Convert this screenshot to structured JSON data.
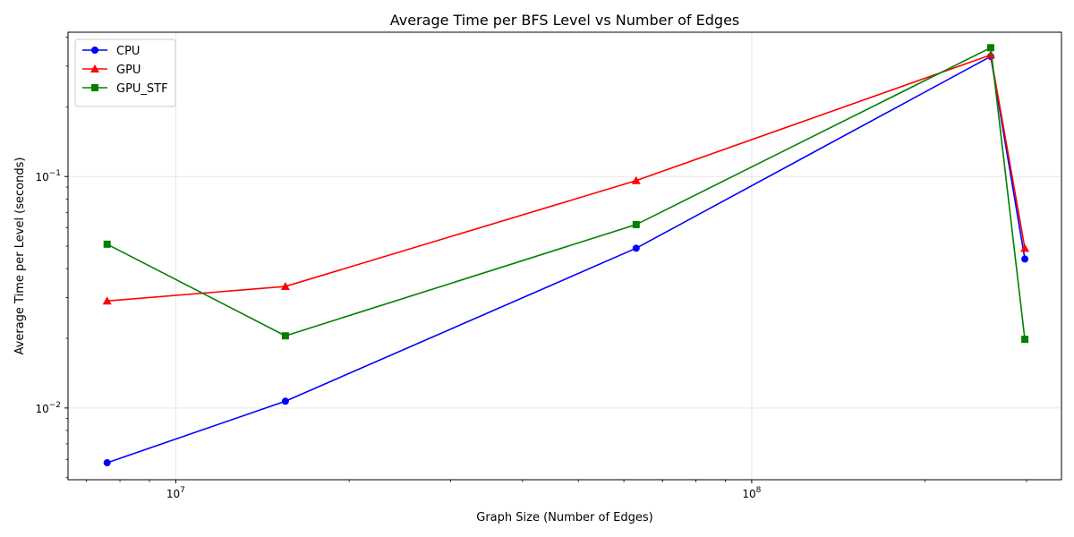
{
  "chart_data": {
    "type": "line",
    "title": "Average Time per BFS Level vs Number of Edges",
    "xlabel": "Graph Size (Number of Edges)",
    "ylabel": "Average Time per Level (seconds)",
    "xscale": "log",
    "yscale": "log",
    "xlim": [
      6500000,
      345000000
    ],
    "ylim": [
      0.0049,
      0.42
    ],
    "x": [
      7600000,
      15500000,
      63000000,
      260000000,
      298000000
    ],
    "x_ticks": [
      {
        "base": "10",
        "exp": "7",
        "value": 10000000
      },
      {
        "base": "10",
        "exp": "8",
        "value": 100000000
      }
    ],
    "y_ticks": [
      {
        "base": "10",
        "exp": "−2",
        "value": 0.01
      },
      {
        "base": "10",
        "exp": "−1",
        "value": 0.1
      }
    ],
    "grid": true,
    "legend_position": "top-left",
    "series": [
      {
        "name": "CPU",
        "color": "#0000ff",
        "marker": "circle",
        "values": [
          0.0058,
          0.0107,
          0.049,
          0.33,
          0.044
        ]
      },
      {
        "name": "GPU",
        "color": "#ff0000",
        "marker": "triangle",
        "values": [
          0.029,
          0.0335,
          0.096,
          0.335,
          0.049
        ]
      },
      {
        "name": "GPU_STF",
        "color": "#008000",
        "marker": "square",
        "values": [
          0.051,
          0.0205,
          0.062,
          0.36,
          0.0198
        ]
      }
    ]
  }
}
